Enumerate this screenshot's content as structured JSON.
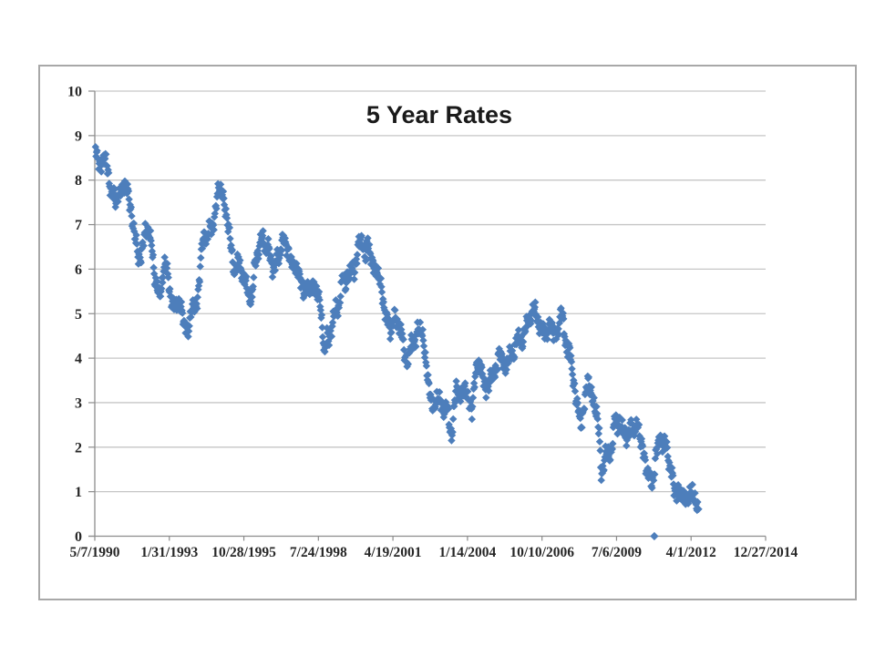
{
  "chart_data": {
    "type": "scatter",
    "title": "5 Year Rates",
    "marker": "diamond",
    "legend": "none",
    "grid": "horizontal",
    "colors": {
      "marker_fill": "#4d7ebb",
      "gridline": "#c6c6c6",
      "axis_line": "#8c8c8c",
      "frame_border": "#a8a8a8",
      "tick_text": "#262626",
      "title_text": "#1a1a1a"
    },
    "y_axis": {
      "min": 0,
      "max": 10,
      "tick_step": 1,
      "tick_labels": [
        "0",
        "1",
        "2",
        "3",
        "4",
        "5",
        "6",
        "7",
        "8",
        "9",
        "10"
      ]
    },
    "x_axis": {
      "tick_labels": [
        "5/7/1990",
        "1/31/1993",
        "10/28/1995",
        "7/24/1998",
        "4/19/2001",
        "1/14/2004",
        "10/10/2006",
        "7/6/2009",
        "4/1/2012",
        "12/27/2014"
      ],
      "first_tick_year_decimal": 1990.347,
      "tick_interval_years": 2.7379
    },
    "series": [
      {
        "name": "5 Year Rates",
        "sampling": "monthly",
        "start_year_decimal": 1990.375,
        "step_years": 0.0833333,
        "values": [
          8.74,
          8.43,
          8.33,
          8.44,
          8.51,
          8.33,
          8.02,
          7.73,
          7.7,
          7.47,
          7.77,
          7.7,
          7.7,
          7.94,
          7.91,
          7.43,
          7.14,
          6.87,
          6.62,
          6.19,
          6.24,
          6.58,
          6.95,
          6.78,
          6.69,
          6.48,
          5.84,
          5.6,
          5.38,
          5.6,
          6.04,
          6.08,
          5.83,
          5.43,
          5.19,
          5.13,
          5.2,
          5.22,
          5.09,
          4.73,
          4.71,
          4.63,
          5.06,
          5.15,
          5.09,
          5.4,
          5.94,
          6.52,
          6.78,
          6.7,
          6.91,
          6.88,
          7.08,
          7.4,
          7.72,
          7.78,
          7.76,
          7.37,
          7.05,
          6.86,
          6.41,
          5.93,
          6.01,
          6.24,
          6.0,
          5.86,
          5.69,
          5.51,
          5.36,
          5.38,
          5.97,
          6.3,
          6.48,
          6.69,
          6.64,
          6.39,
          6.6,
          6.27,
          5.97,
          6.07,
          6.33,
          6.2,
          6.54,
          6.76,
          6.57,
          6.38,
          6.12,
          6.16,
          6.11,
          5.93,
          5.8,
          5.77,
          5.42,
          5.49,
          5.61,
          5.61,
          5.63,
          5.52,
          5.46,
          5.27,
          4.62,
          4.05,
          4.54,
          4.45,
          4.6,
          4.91,
          5.14,
          5.08,
          5.44,
          5.81,
          5.68,
          5.84,
          5.8,
          6.03,
          5.97,
          6.19,
          6.58,
          6.68,
          6.5,
          6.26,
          6.69,
          6.3,
          6.18,
          6.06,
          5.93,
          5.78,
          5.7,
          5.17,
          4.86,
          4.89,
          4.64,
          4.76,
          4.93,
          4.81,
          4.76,
          4.57,
          4.12,
          3.91,
          3.97,
          4.39,
          4.34,
          4.3,
          4.74,
          4.65,
          4.49,
          4.19,
          3.81,
          3.29,
          2.94,
          2.95,
          3.05,
          3.03,
          3.05,
          2.9,
          2.78,
          2.93,
          2.52,
          2.2,
          2.87,
          3.37,
          3.18,
          3.19,
          3.29,
          3.27,
          3.12,
          3.07,
          2.79,
          3.39,
          3.85,
          3.93,
          3.69,
          3.47,
          3.36,
          3.35,
          3.53,
          3.6,
          3.71,
          3.77,
          4.17,
          4.0,
          3.85,
          3.77,
          3.98,
          4.12,
          4.01,
          4.33,
          4.42,
          4.39,
          4.35,
          4.57,
          4.72,
          4.9,
          5.0,
          5.07,
          5.04,
          4.82,
          4.67,
          4.69,
          4.58,
          4.53,
          4.75,
          4.71,
          4.48,
          4.59,
          4.67,
          5.03,
          4.88,
          4.43,
          4.2,
          4.2,
          3.67,
          3.49,
          2.98,
          2.78,
          2.48,
          2.84,
          3.15,
          3.55,
          3.3,
          3.14,
          2.88,
          2.73,
          2.29,
          1.35,
          1.6,
          1.87,
          1.82,
          1.86,
          2.13,
          2.71,
          2.46,
          2.57,
          2.37,
          2.33,
          2.23,
          2.34,
          2.48,
          2.36,
          2.43,
          2.58,
          2.18,
          2.0,
          1.76,
          1.47,
          1.41,
          1.1,
          1.35,
          1.93,
          1.99,
          2.26,
          2.11,
          2.17,
          1.84,
          1.58,
          1.54,
          1.02,
          0.9,
          1.06,
          0.91,
          0.89,
          0.84,
          0.83,
          1.02,
          1.01,
          0.76,
          0.71,
          0.64
        ]
      }
    ],
    "outlier_points": [
      {
        "year_decimal": 2010.9,
        "value": 0
      }
    ]
  }
}
